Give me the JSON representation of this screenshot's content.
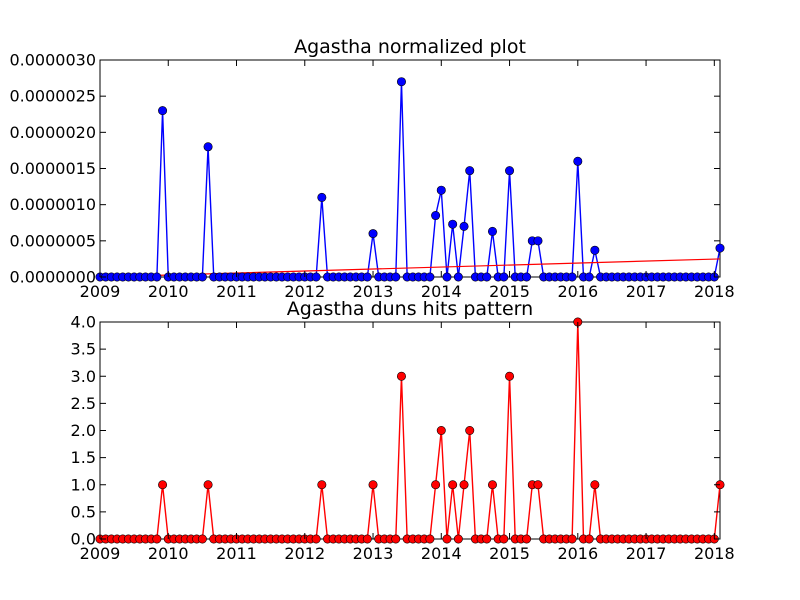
{
  "chart_data": [
    {
      "type": "line",
      "title": "Agastha normalized plot",
      "xlabel": "",
      "ylabel": "",
      "xlim": [
        "2009-01",
        "2018-02"
      ],
      "ylim": [
        0,
        3e-06
      ],
      "x_ticks": [
        "2009",
        "2010",
        "2011",
        "2012",
        "2013",
        "2014",
        "2015",
        "2016",
        "2017",
        "2018"
      ],
      "y_ticks": [
        "0.0000000",
        "0.0000005",
        "0.0000010",
        "0.0000015",
        "0.0000020",
        "0.0000025",
        "0.0000030"
      ],
      "grid": false,
      "series_color": "#0000ff",
      "trend_color": "#ff0000",
      "series": [
        {
          "points": [
            [
              "2009-12",
              2.3e-06
            ],
            [
              "2010-08",
              1.8e-06
            ],
            [
              "2012-04",
              1.1e-06
            ],
            [
              "2013-01",
              6e-07
            ],
            [
              "2013-06",
              2.7e-06
            ],
            [
              "2013-12",
              8.5e-07
            ],
            [
              "2014-01",
              1.2e-06
            ],
            [
              "2014-03",
              7.3e-07
            ],
            [
              "2014-05",
              7e-07
            ],
            [
              "2014-06",
              1.47e-06
            ],
            [
              "2014-10",
              6.3e-07
            ],
            [
              "2015-01",
              1.47e-06
            ],
            [
              "2015-05",
              5e-07
            ],
            [
              "2015-06",
              5e-07
            ],
            [
              "2016-01",
              1.6e-06
            ],
            [
              "2016-04",
              3.7e-07
            ],
            [
              "2018-02",
              4e-07
            ]
          ],
          "trend": [
            [
              "2009-01",
              0.0
            ],
            [
              "2018-02",
              2.5e-07
            ]
          ]
        }
      ]
    },
    {
      "type": "line",
      "title": "Agastha duns hits pattern",
      "xlabel": "",
      "ylabel": "",
      "xlim": [
        "2009-01",
        "2018-02"
      ],
      "ylim": [
        0,
        4
      ],
      "x_ticks": [
        "2009",
        "2010",
        "2011",
        "2012",
        "2013",
        "2014",
        "2015",
        "2016",
        "2017",
        "2018"
      ],
      "y_ticks": [
        "0.0",
        "0.5",
        "1.0",
        "1.5",
        "2.0",
        "2.5",
        "3.0",
        "3.5",
        "4.0"
      ],
      "grid": false,
      "series_color": "#ff0000",
      "series": [
        {
          "points": [
            [
              "2009-12",
              1
            ],
            [
              "2010-08",
              1
            ],
            [
              "2012-04",
              1
            ],
            [
              "2013-01",
              1
            ],
            [
              "2013-06",
              3
            ],
            [
              "2013-12",
              1
            ],
            [
              "2014-01",
              2
            ],
            [
              "2014-03",
              1
            ],
            [
              "2014-05",
              1
            ],
            [
              "2014-06",
              2
            ],
            [
              "2014-10",
              1
            ],
            [
              "2015-01",
              3
            ],
            [
              "2015-05",
              1
            ],
            [
              "2015-06",
              1
            ],
            [
              "2016-01",
              4
            ],
            [
              "2016-04",
              1
            ],
            [
              "2018-02",
              1
            ]
          ]
        }
      ]
    }
  ]
}
